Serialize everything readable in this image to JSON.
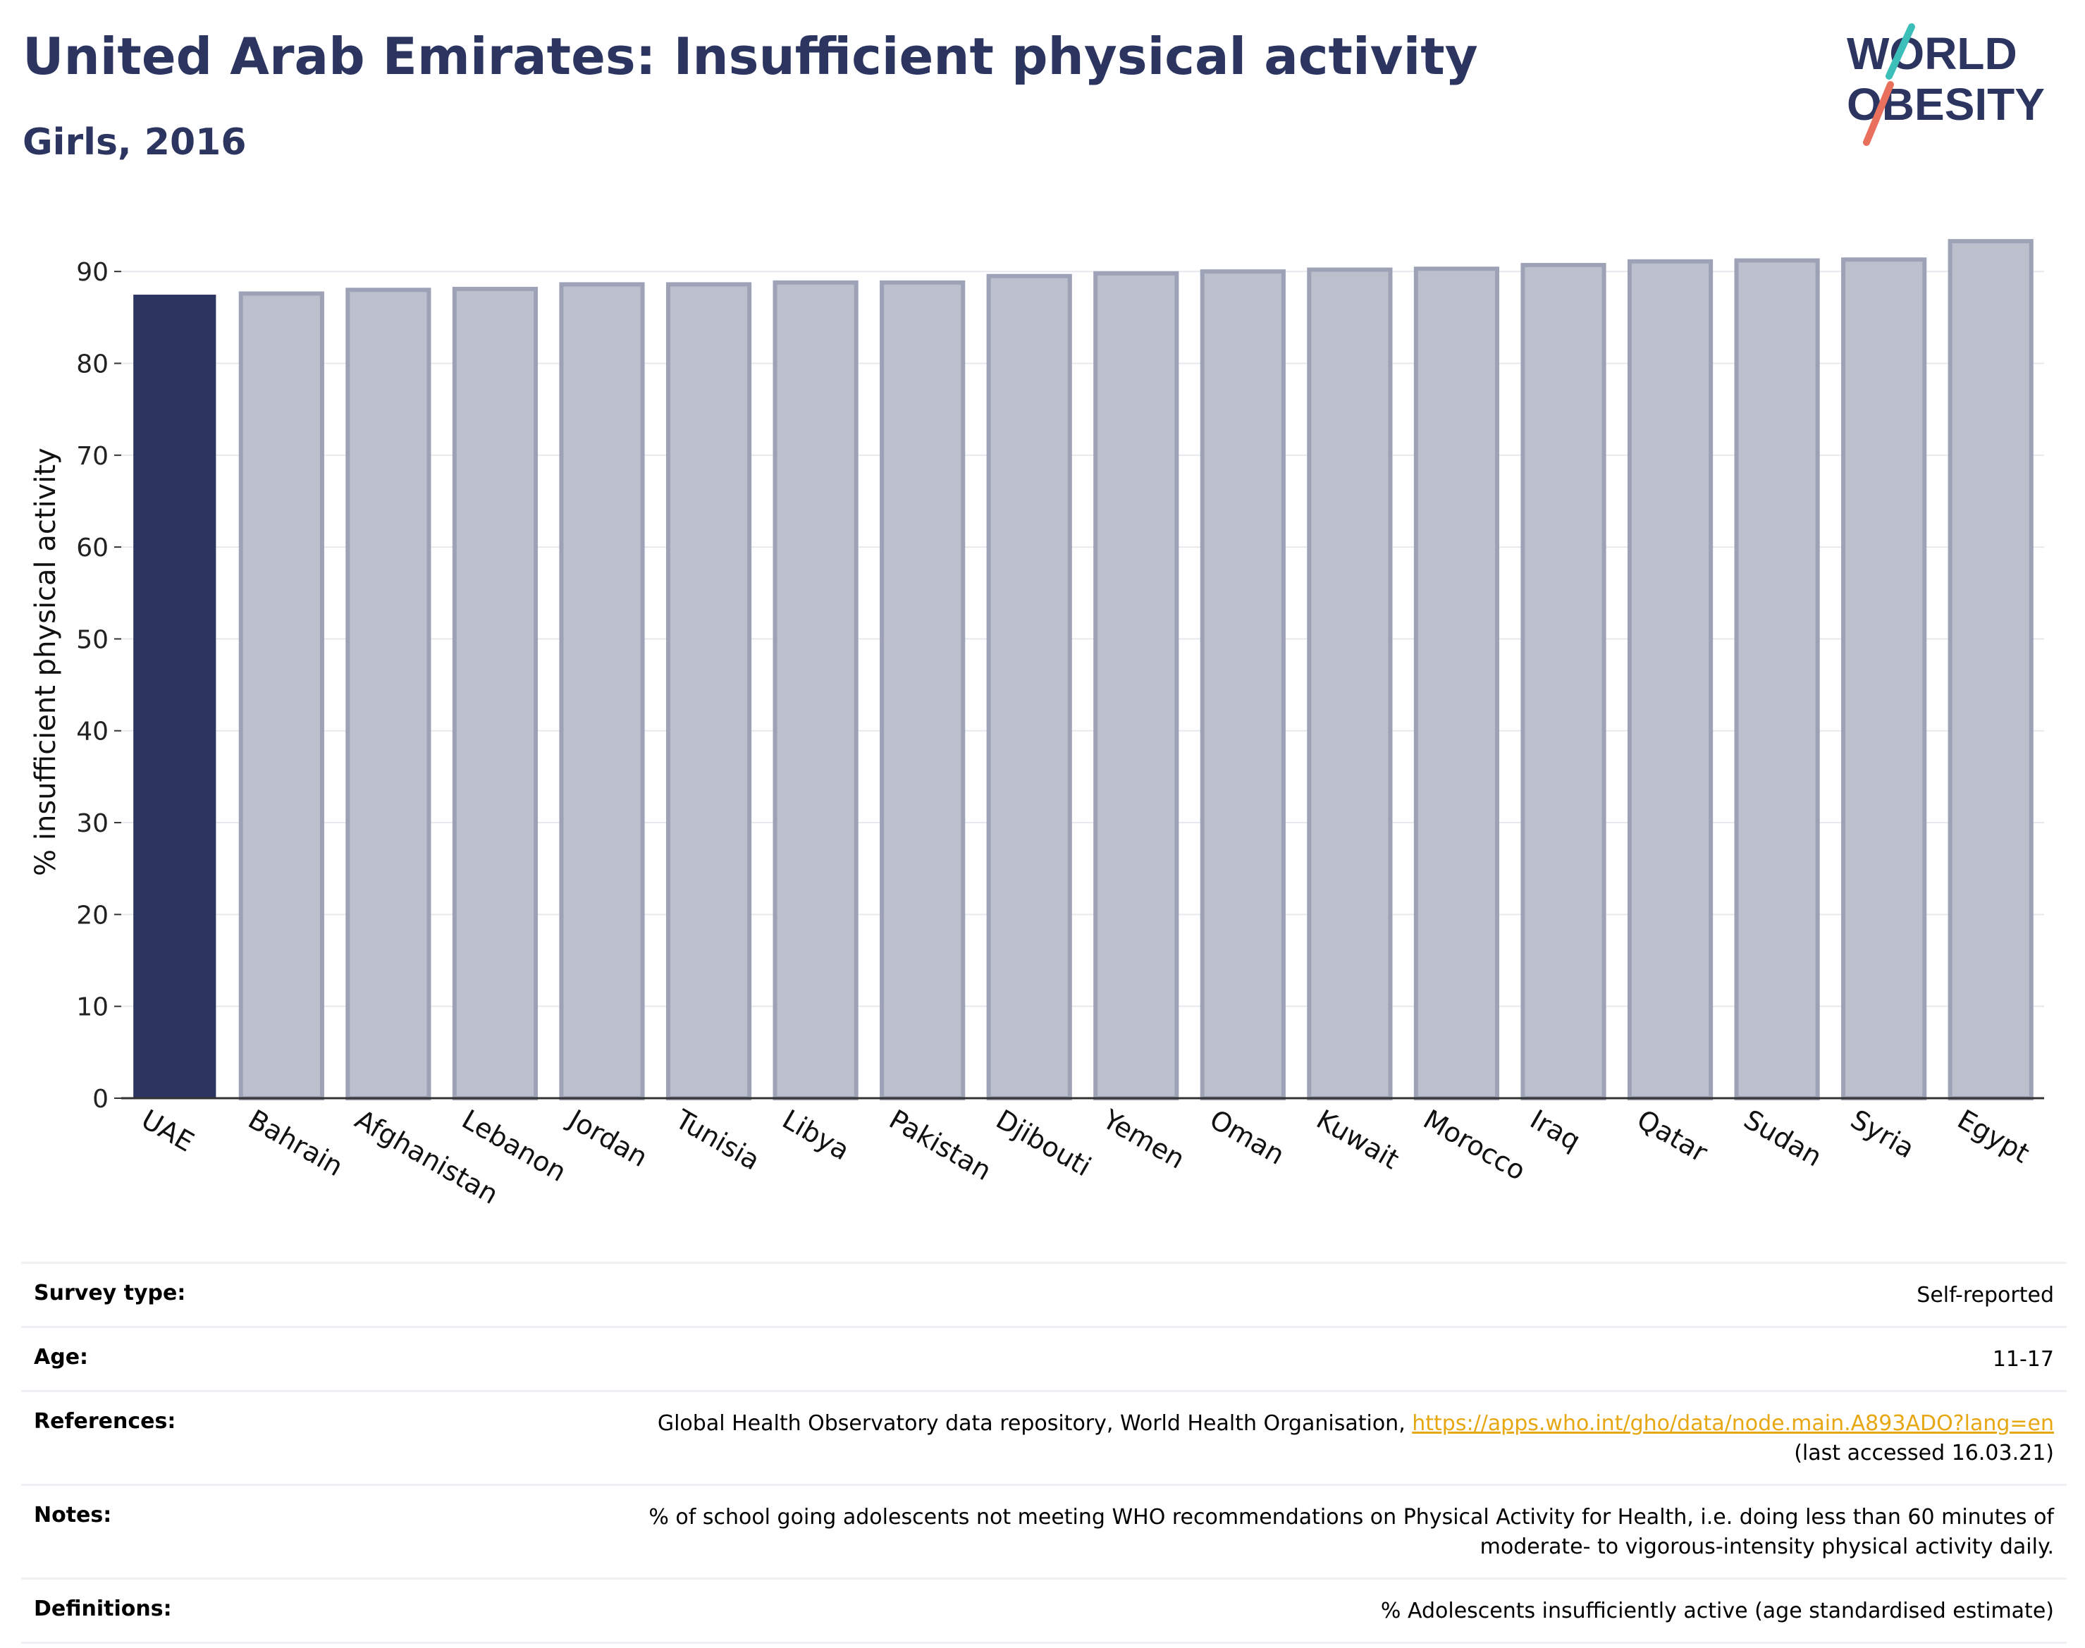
{
  "header": {
    "title": "United Arab Emirates: Insufficient physical activity",
    "subtitle": "Girls, 2016",
    "logo_text_line1": "WORLD",
    "logo_text_line2": "OBESITY"
  },
  "colors": {
    "title": "#2b3560",
    "highlight_bar": "#2b3560",
    "other_bar_fill": "#bcc0cd",
    "other_bar_stroke": "#9da2b6",
    "grid": "#e8e9ee",
    "link": "#e7a712",
    "logo_teal": "#3bbfb8",
    "logo_coral": "#e8705d"
  },
  "chart_data": {
    "type": "bar",
    "categories": [
      "UAE",
      "Bahrain",
      "Afghanistan",
      "Lebanon",
      "Jordan",
      "Tunisia",
      "Libya",
      "Pakistan",
      "Djibouti",
      "Yemen",
      "Oman",
      "Kuwait",
      "Morocco",
      "Iraq",
      "Qatar",
      "Sudan",
      "Syria",
      "Egypt"
    ],
    "values": [
      87.4,
      87.6,
      88.0,
      88.1,
      88.6,
      88.6,
      88.8,
      88.8,
      89.5,
      89.8,
      90.0,
      90.2,
      90.3,
      90.7,
      91.1,
      91.2,
      91.3,
      93.3
    ],
    "highlight": "UAE",
    "xlabel": "",
    "ylabel": "% insufficient physical activity",
    "ylim": [
      0,
      95
    ],
    "yticks": [
      0,
      10,
      20,
      30,
      40,
      50,
      60,
      70,
      80,
      90
    ],
    "grid": true
  },
  "info": [
    {
      "label": "Survey type:",
      "value": "Self-reported"
    },
    {
      "label": "Age:",
      "value": "11-17"
    },
    {
      "label": "References:",
      "value": "Global Health Observatory data repository, World Health Organisation, ",
      "link": "https://apps.who.int/gho/data/node.main.A893ADO?lang=en",
      "value_line2": "(last accessed 16.03.21)"
    },
    {
      "label": "Notes:",
      "value": "% of school going adolescents not meeting WHO recommendations on Physical Activity for Health, i.e. doing less than 60 minutes of",
      "value_line2": "moderate- to vigorous-intensity physical activity daily."
    },
    {
      "label": "Definitions:",
      "value": "% Adolescents insufficiently active (age standardised estimate)"
    }
  ]
}
